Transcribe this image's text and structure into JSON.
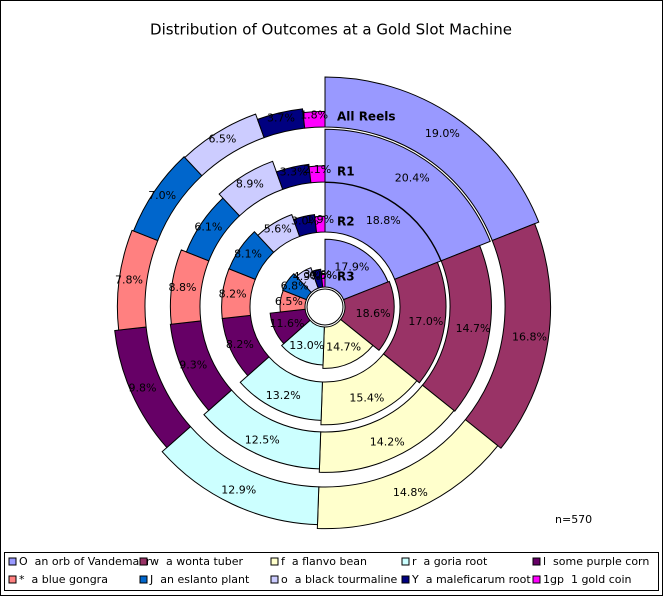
{
  "chart_data": {
    "type": "nested-rose",
    "title": "Distribution of Outcomes at a Gold Slot Machine",
    "annotation": "n=570",
    "categories": [
      "O  an orb of Vandemaar",
      "w  a wonta tuber",
      "f  a flanvo bean",
      "r  a goria root",
      "l  some purple corn",
      "*  a blue gongra",
      "J  an eslanto plant",
      "o  a black tourmaline",
      "Y  a maleficarum root",
      "1gp  1 gold coin"
    ],
    "colors": [
      "#9999ff",
      "#993366",
      "#ffffcc",
      "#ccffff",
      "#660066",
      "#ff8080",
      "#0066cc",
      "#ccccff",
      "#000080",
      "#ff00ff"
    ],
    "series": [
      {
        "name": "All Reels",
        "values": [
          19.0,
          16.8,
          14.8,
          12.9,
          9.8,
          7.8,
          7.0,
          6.5,
          3.7,
          1.8
        ],
        "value_labels": [
          "19.0%",
          "16.8%",
          "14.8%",
          "12.9%",
          "9.8%",
          "7.8%",
          "7.0%",
          "6.5%",
          "3.7%",
          "1.8%"
        ]
      },
      {
        "name": "R1",
        "values": [
          20.4,
          14.7,
          14.2,
          12.5,
          9.3,
          8.8,
          6.1,
          8.9,
          3.3,
          2.1
        ],
        "value_labels": [
          "20.4%",
          "14.7%",
          "14.2%",
          "12.5%",
          "9.3%",
          "8.8%",
          "6.1%",
          "8.9%",
          "3.3%",
          "2.1%"
        ]
      },
      {
        "name": "R2",
        "values": [
          18.8,
          17.0,
          15.4,
          13.2,
          8.2,
          8.2,
          8.1,
          5.6,
          3.0,
          1.9
        ],
        "value_labels": [
          "18.8%",
          "17.0%",
          "15.4%",
          "13.2%",
          "8.2%",
          "8.2%",
          "8.1%",
          "5.6%",
          "3.0%",
          "1.9%"
        ]
      },
      {
        "name": "R3",
        "values": [
          17.9,
          18.6,
          14.7,
          13.0,
          11.6,
          6.5,
          6.8,
          4.9,
          3.0,
          0.8
        ],
        "value_labels": [
          "17.9%",
          "18.6%",
          "14.7%",
          "13.0%",
          "11.6%",
          "6.5%",
          "6.8%",
          "4.9%",
          "3.0%",
          "0.8%"
        ]
      }
    ]
  }
}
